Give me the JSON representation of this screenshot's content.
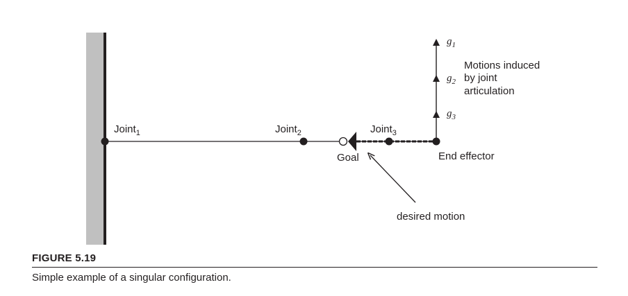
{
  "labels": {
    "joint1": "Joint",
    "joint1_sub": "1",
    "joint2": "Joint",
    "joint2_sub": "2",
    "joint3": "Joint",
    "joint3_sub": "3",
    "goal": "Goal",
    "end_effector": "End effector",
    "desired_motion": "desired motion",
    "g1": "g",
    "g1_sub": "1",
    "g2": "g",
    "g2_sub": "2",
    "g3": "g",
    "g3_sub": "3",
    "motions_line1": "Motions induced",
    "motions_line2": "by joint",
    "motions_line3": "articulation"
  },
  "caption": {
    "title": "FIGURE 5.19",
    "text": "Simple example of a singular configuration."
  },
  "colors": {
    "wall_fill": "#c0c0c0",
    "ink": "#231f20",
    "background": "#ffffff"
  }
}
